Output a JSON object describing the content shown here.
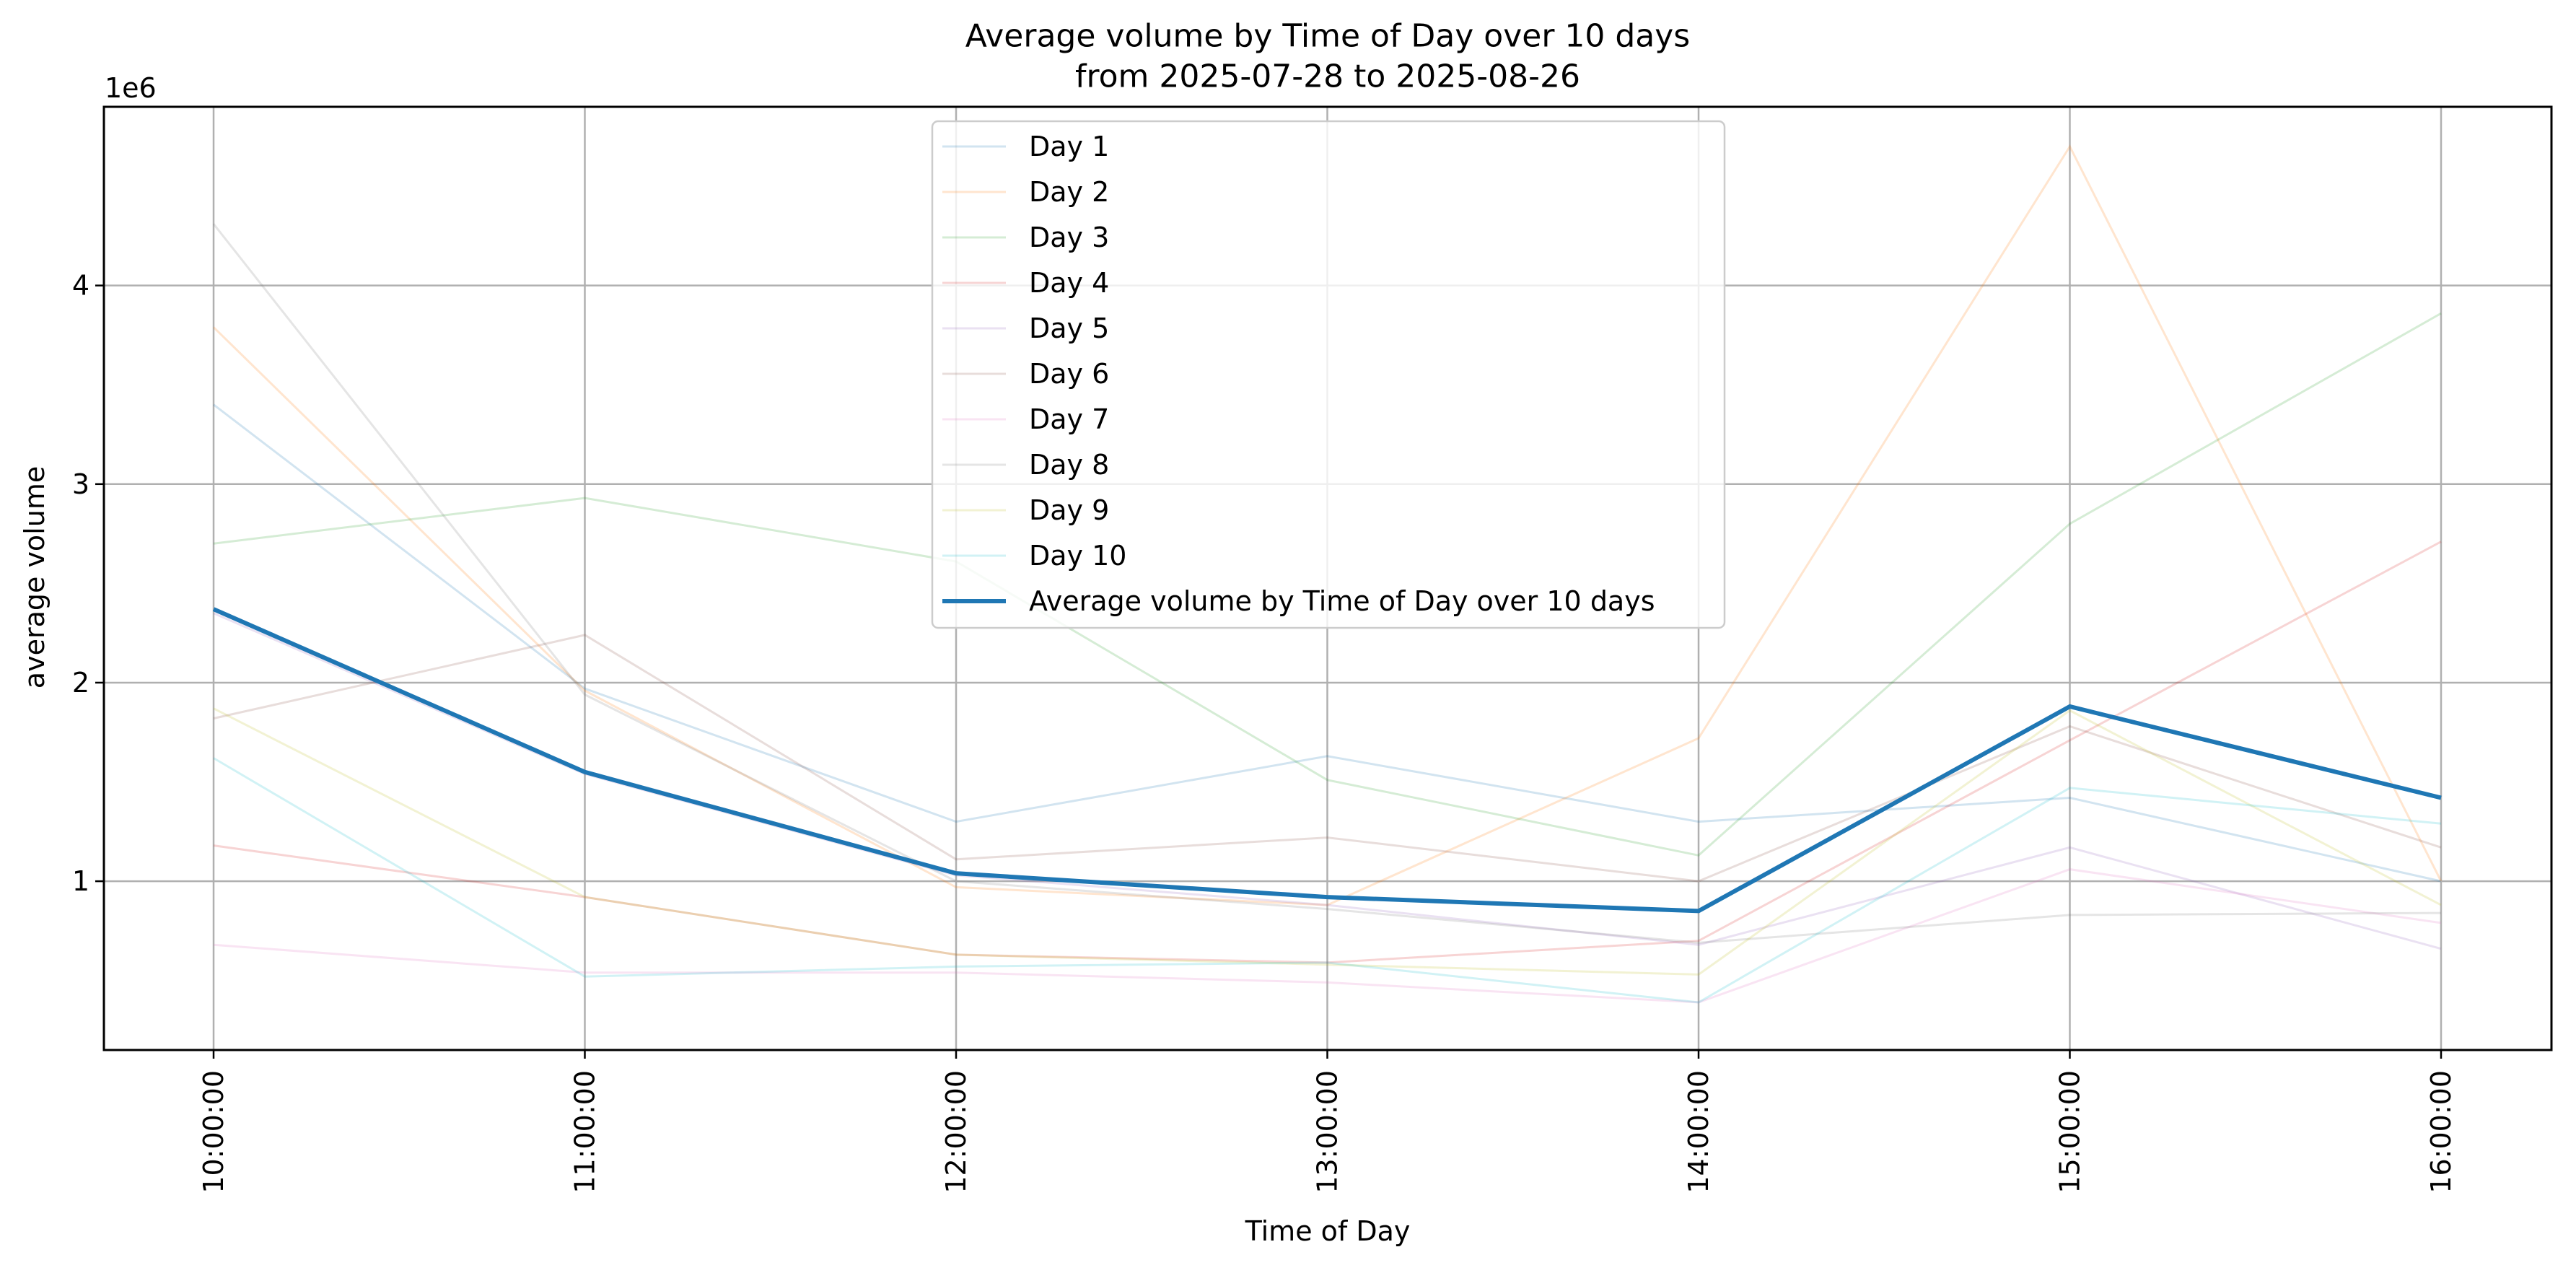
{
  "chart_data": {
    "type": "line",
    "title": "Average volume by Time of Day over 10 days",
    "subtitle": "from 2025-07-28 to 2025-08-26",
    "xlabel": "Time of Day",
    "ylabel": "average volume",
    "y_offset_label": "1e6",
    "y_scale": 1000000,
    "categories": [
      "10:00:00",
      "11:00:00",
      "12:00:00",
      "13:00:00",
      "14:00:00",
      "15:00:00",
      "16:00:00"
    ],
    "yticks": [
      1,
      2,
      3,
      4
    ],
    "ylim": [
      150000,
      4900000
    ],
    "grid": true,
    "legend_position": "upper center",
    "series": [
      {
        "name": "Day 1",
        "color": "#1f77b4",
        "opacity": 0.2,
        "values": [
          3400000,
          1970000,
          1300000,
          1630000,
          1300000,
          1420000,
          1000000
        ]
      },
      {
        "name": "Day 2",
        "color": "#ff7f0e",
        "opacity": 0.2,
        "values": [
          3790000,
          1960000,
          970000,
          880000,
          1720000,
          4700000,
          1000000
        ]
      },
      {
        "name": "Day 3",
        "color": "#2ca02c",
        "opacity": 0.2,
        "values": [
          2700000,
          2930000,
          2610000,
          1510000,
          1130000,
          2800000,
          3860000
        ]
      },
      {
        "name": "Day 4",
        "color": "#d62728",
        "opacity": 0.2,
        "values": [
          1180000,
          920000,
          630000,
          590000,
          700000,
          1710000,
          2710000
        ]
      },
      {
        "name": "Day 5",
        "color": "#9467bd",
        "opacity": 0.2,
        "values": [
          2350000,
          1540000,
          1030000,
          880000,
          680000,
          1170000,
          660000
        ]
      },
      {
        "name": "Day 6",
        "color": "#8c564b",
        "opacity": 0.2,
        "values": [
          1820000,
          2240000,
          1110000,
          1220000,
          1000000,
          1780000,
          1170000
        ]
      },
      {
        "name": "Day 7",
        "color": "#e377c2",
        "opacity": 0.2,
        "values": [
          680000,
          540000,
          540000,
          490000,
          390000,
          1060000,
          790000
        ]
      },
      {
        "name": "Day 8",
        "color": "#7f7f7f",
        "opacity": 0.2,
        "values": [
          4310000,
          1940000,
          1000000,
          860000,
          690000,
          830000,
          840000
        ]
      },
      {
        "name": "Day 9",
        "color": "#bcbd22",
        "opacity": 0.2,
        "values": [
          1870000,
          920000,
          630000,
          580000,
          530000,
          1860000,
          880000
        ]
      },
      {
        "name": "Day 10",
        "color": "#17becf",
        "opacity": 0.2,
        "values": [
          1620000,
          520000,
          570000,
          590000,
          390000,
          1470000,
          1290000
        ]
      },
      {
        "name": "Average volume by Time of Day over 10 days",
        "color": "#1f77b4",
        "opacity": 1,
        "bold": true,
        "values": [
          2370000,
          1550000,
          1040000,
          920000,
          850000,
          1880000,
          1420000
        ]
      }
    ]
  }
}
